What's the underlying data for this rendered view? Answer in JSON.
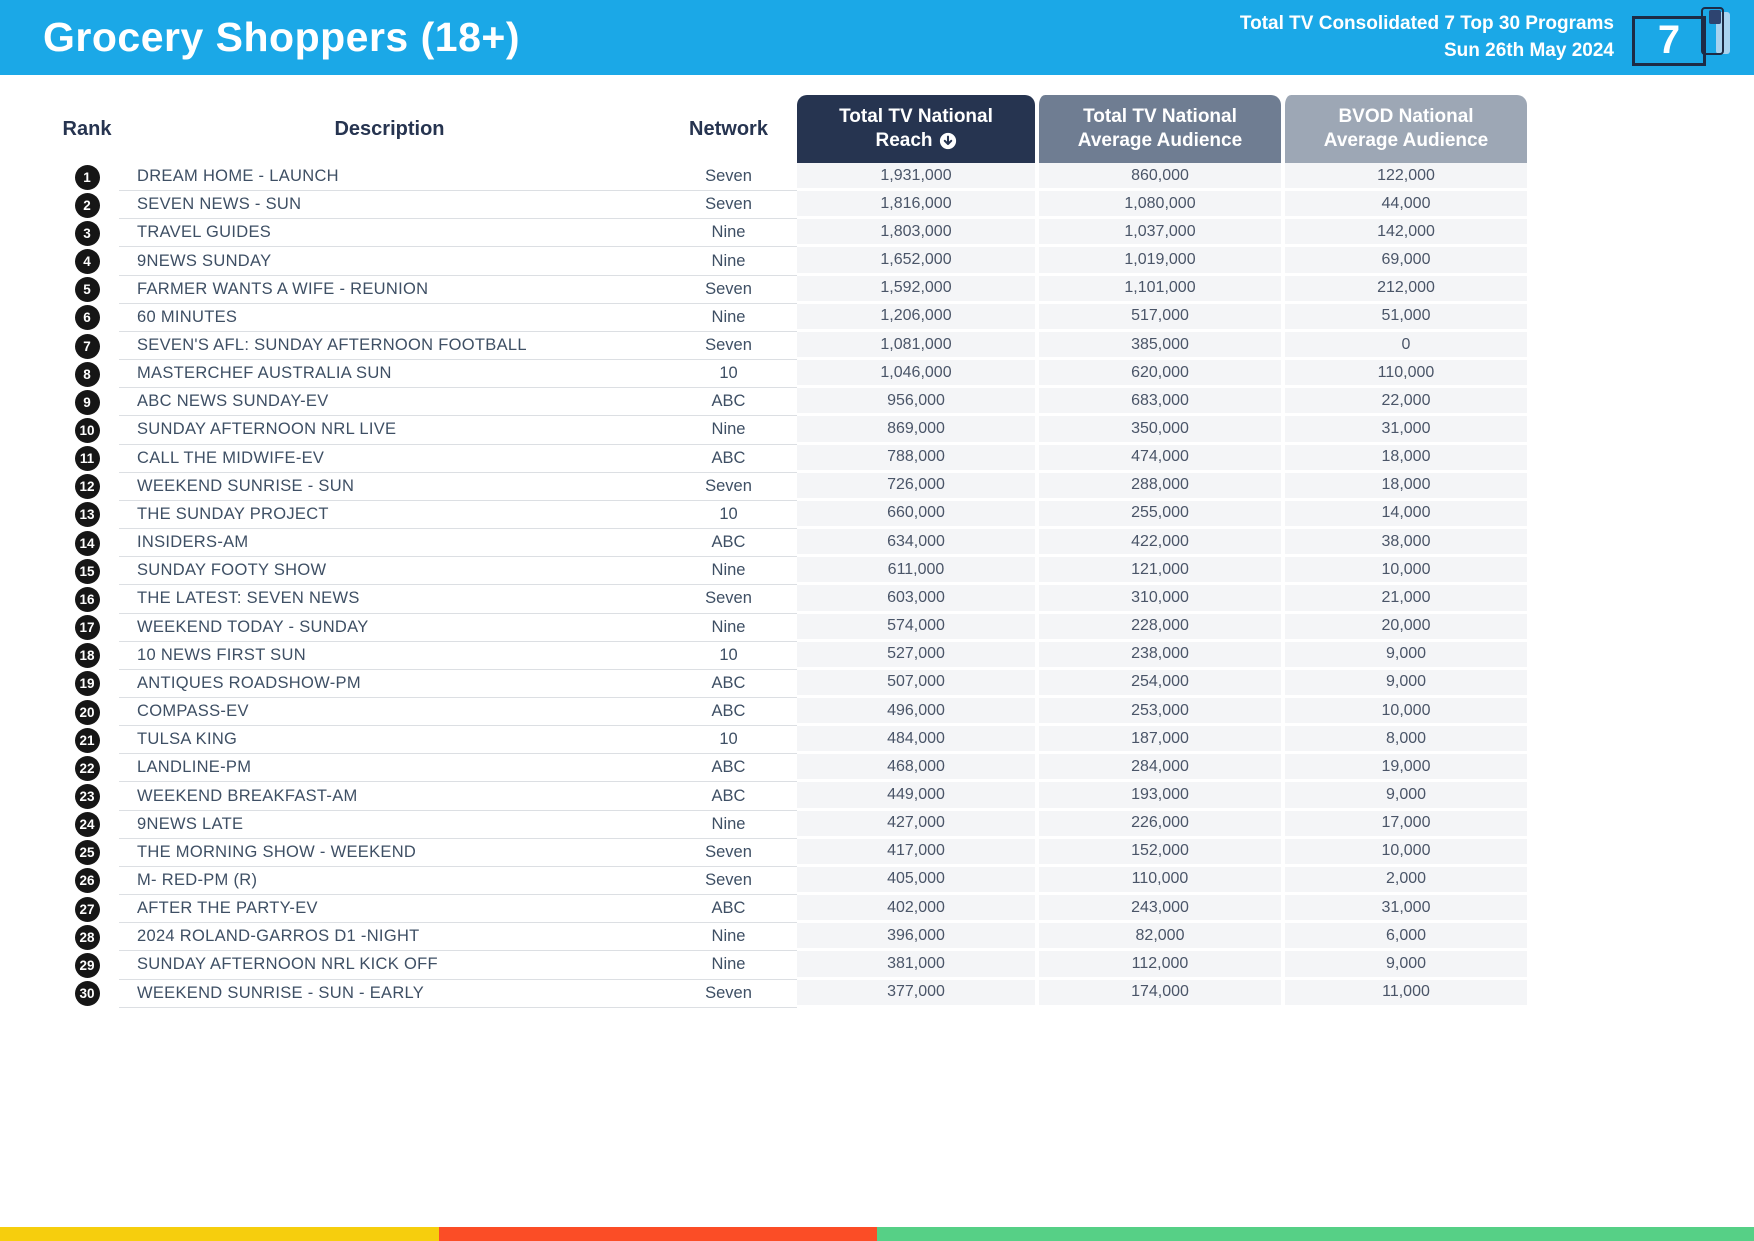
{
  "header": {
    "title": "Grocery Shoppers (18+)",
    "subtitle_line1": "Total TV Consolidated 7 Top 30 Programs",
    "subtitle_line2": "Sun 26th May 2024",
    "logo_text": "7",
    "accent_color": "#1BA8E7"
  },
  "table": {
    "columns": {
      "rank": "Rank",
      "description": "Description",
      "network": "Network",
      "reach_line1": "Total TV National",
      "reach_line2": "Reach",
      "avg_line1": "Total TV National",
      "avg_line2": "Average Audience",
      "bvod_line1": "BVOD National",
      "bvod_line2": "Average Audience",
      "reach_header_color": "#263450",
      "avg_header_color": "#6F7D92",
      "bvod_header_color": "#9DA7B5"
    },
    "rows": [
      {
        "rank": "1",
        "description": "DREAM HOME - LAUNCH",
        "network": "Seven",
        "reach": "1,931,000",
        "avg": "860,000",
        "bvod": "122,000"
      },
      {
        "rank": "2",
        "description": "SEVEN NEWS - SUN",
        "network": "Seven",
        "reach": "1,816,000",
        "avg": "1,080,000",
        "bvod": "44,000"
      },
      {
        "rank": "3",
        "description": "TRAVEL GUIDES",
        "network": "Nine",
        "reach": "1,803,000",
        "avg": "1,037,000",
        "bvod": "142,000"
      },
      {
        "rank": "4",
        "description": "9NEWS SUNDAY",
        "network": "Nine",
        "reach": "1,652,000",
        "avg": "1,019,000",
        "bvod": "69,000"
      },
      {
        "rank": "5",
        "description": "FARMER WANTS A WIFE - REUNION",
        "network": "Seven",
        "reach": "1,592,000",
        "avg": "1,101,000",
        "bvod": "212,000"
      },
      {
        "rank": "6",
        "description": "60 MINUTES",
        "network": "Nine",
        "reach": "1,206,000",
        "avg": "517,000",
        "bvod": "51,000"
      },
      {
        "rank": "7",
        "description": "SEVEN'S AFL: SUNDAY AFTERNOON FOOTBALL",
        "network": "Seven",
        "reach": "1,081,000",
        "avg": "385,000",
        "bvod": "0"
      },
      {
        "rank": "8",
        "description": "MASTERCHEF AUSTRALIA SUN",
        "network": "10",
        "reach": "1,046,000",
        "avg": "620,000",
        "bvod": "110,000"
      },
      {
        "rank": "9",
        "description": "ABC NEWS SUNDAY-EV",
        "network": "ABC",
        "reach": "956,000",
        "avg": "683,000",
        "bvod": "22,000"
      },
      {
        "rank": "10",
        "description": "SUNDAY AFTERNOON NRL LIVE",
        "network": "Nine",
        "reach": "869,000",
        "avg": "350,000",
        "bvod": "31,000"
      },
      {
        "rank": "11",
        "description": "CALL THE MIDWIFE-EV",
        "network": "ABC",
        "reach": "788,000",
        "avg": "474,000",
        "bvod": "18,000"
      },
      {
        "rank": "12",
        "description": "WEEKEND SUNRISE - SUN",
        "network": "Seven",
        "reach": "726,000",
        "avg": "288,000",
        "bvod": "18,000"
      },
      {
        "rank": "13",
        "description": "THE SUNDAY PROJECT",
        "network": "10",
        "reach": "660,000",
        "avg": "255,000",
        "bvod": "14,000"
      },
      {
        "rank": "14",
        "description": "INSIDERS-AM",
        "network": "ABC",
        "reach": "634,000",
        "avg": "422,000",
        "bvod": "38,000"
      },
      {
        "rank": "15",
        "description": "SUNDAY FOOTY SHOW",
        "network": "Nine",
        "reach": "611,000",
        "avg": "121,000",
        "bvod": "10,000"
      },
      {
        "rank": "16",
        "description": "THE LATEST: SEVEN NEWS",
        "network": "Seven",
        "reach": "603,000",
        "avg": "310,000",
        "bvod": "21,000"
      },
      {
        "rank": "17",
        "description": "WEEKEND TODAY - SUNDAY",
        "network": "Nine",
        "reach": "574,000",
        "avg": "228,000",
        "bvod": "20,000"
      },
      {
        "rank": "18",
        "description": "10 NEWS FIRST SUN",
        "network": "10",
        "reach": "527,000",
        "avg": "238,000",
        "bvod": "9,000"
      },
      {
        "rank": "19",
        "description": "ANTIQUES ROADSHOW-PM",
        "network": "ABC",
        "reach": "507,000",
        "avg": "254,000",
        "bvod": "9,000"
      },
      {
        "rank": "20",
        "description": "COMPASS-EV",
        "network": "ABC",
        "reach": "496,000",
        "avg": "253,000",
        "bvod": "10,000"
      },
      {
        "rank": "21",
        "description": "TULSA KING",
        "network": "10",
        "reach": "484,000",
        "avg": "187,000",
        "bvod": "8,000"
      },
      {
        "rank": "22",
        "description": "LANDLINE-PM",
        "network": "ABC",
        "reach": "468,000",
        "avg": "284,000",
        "bvod": "19,000"
      },
      {
        "rank": "23",
        "description": "WEEKEND BREAKFAST-AM",
        "network": "ABC",
        "reach": "449,000",
        "avg": "193,000",
        "bvod": "9,000"
      },
      {
        "rank": "24",
        "description": "9NEWS LATE",
        "network": "Nine",
        "reach": "427,000",
        "avg": "226,000",
        "bvod": "17,000"
      },
      {
        "rank": "25",
        "description": "THE MORNING SHOW - WEEKEND",
        "network": "Seven",
        "reach": "417,000",
        "avg": "152,000",
        "bvod": "10,000"
      },
      {
        "rank": "26",
        "description": "M- RED-PM (R)",
        "network": "Seven",
        "reach": "405,000",
        "avg": "110,000",
        "bvod": "2,000"
      },
      {
        "rank": "27",
        "description": "AFTER THE PARTY-EV",
        "network": "ABC",
        "reach": "402,000",
        "avg": "243,000",
        "bvod": "31,000"
      },
      {
        "rank": "28",
        "description": "2024 ROLAND-GARROS D1 -NIGHT",
        "network": "Nine",
        "reach": "396,000",
        "avg": "82,000",
        "bvod": "6,000"
      },
      {
        "rank": "29",
        "description": "SUNDAY AFTERNOON NRL KICK OFF",
        "network": "Nine",
        "reach": "381,000",
        "avg": "112,000",
        "bvod": "9,000"
      },
      {
        "rank": "30",
        "description": "WEEKEND SUNRISE - SUN - EARLY",
        "network": "Seven",
        "reach": "377,000",
        "avg": "174,000",
        "bvod": "11,000"
      }
    ]
  },
  "footer": {
    "stripes": [
      {
        "color": "#F6CE0D",
        "width_pct": 25
      },
      {
        "color": "#FB4D26",
        "width_pct": 25
      },
      {
        "color": "#56D086",
        "width_pct": 50
      }
    ]
  }
}
